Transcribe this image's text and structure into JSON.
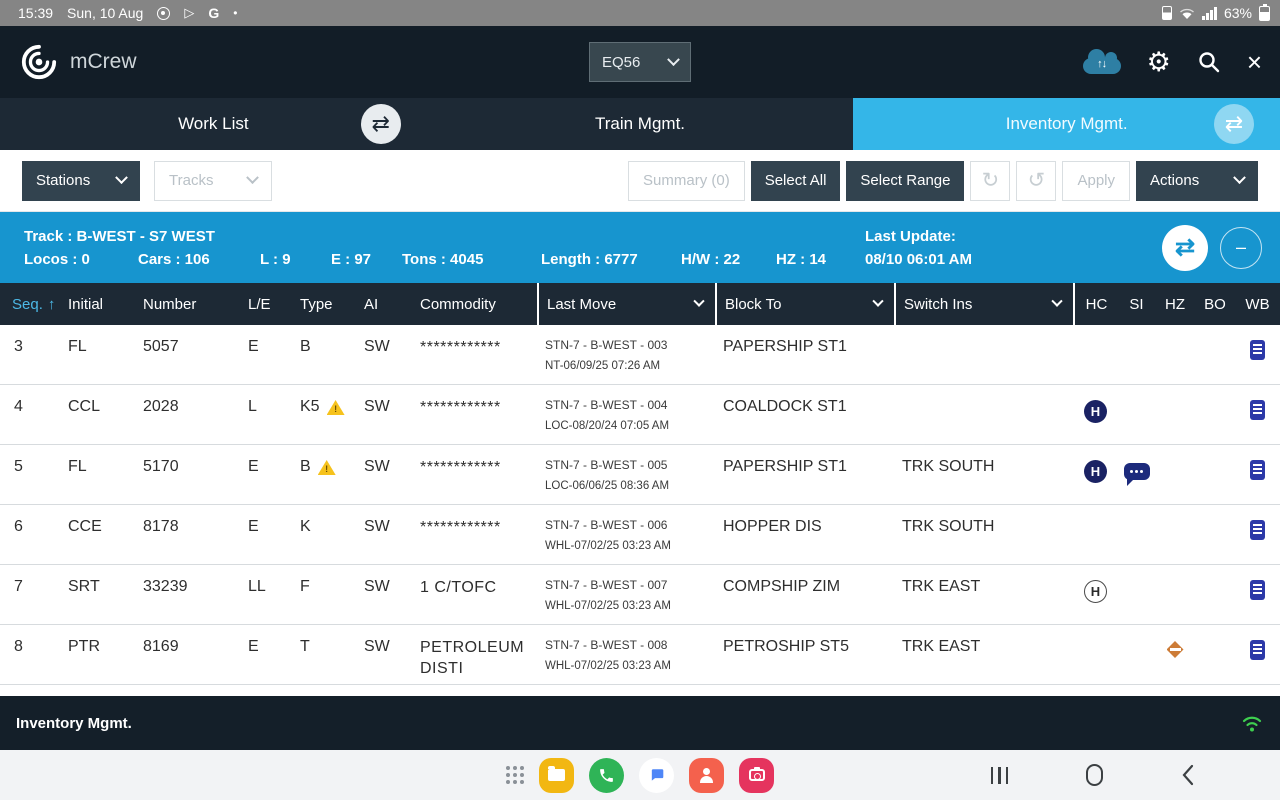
{
  "status_bar": {
    "time": "15:39",
    "date": "Sun, 10 Aug",
    "battery": "63%"
  },
  "app_header": {
    "title": "mCrew",
    "train_id": "EQ56"
  },
  "tabs": {
    "work_list": "Work List",
    "train_mgmt": "Train Mgmt.",
    "inventory_mgmt": "Inventory Mgmt."
  },
  "toolbar": {
    "stations": "Stations",
    "tracks": "Tracks",
    "summary": "Summary (0)",
    "select_all": "Select All",
    "select_range": "Select Range",
    "apply": "Apply",
    "actions": "Actions"
  },
  "track_summary": {
    "track_line": "Track : B-WEST - S7 WEST",
    "stats": {
      "locos": "Locos : 0",
      "cars": "Cars : 106",
      "loads": "L : 9",
      "empties": "E : 97",
      "tons": "Tons : 4045",
      "length": "Length : 6777",
      "hw": "H/W : 22",
      "hz": "HZ : 14"
    },
    "last_update_label": "Last Update:",
    "last_update_value": "08/10 06:01 AM"
  },
  "ui": {
    "sort_arrow": "↑",
    "h_badge": "H",
    "swap_glyph": "⇄",
    "sync_glyph": "↻",
    "undo_glyph": "↺"
  },
  "icons": {
    "header": [
      "cloud-sync-icon",
      "settings-gear-icon",
      "search-icon",
      "close-icon"
    ],
    "status_bar_left": [
      "recorder-icon",
      "play-store-icon",
      "google-icon"
    ],
    "status_bar_right": [
      "battery-saver-icon",
      "wifi-icon",
      "signal-strength-icon",
      "battery-icon"
    ],
    "footer": [
      "wifi-status-icon"
    ],
    "table_badges": {
      "hc": "hold-badge",
      "si": "comment-icon",
      "hz": "hazmat-diamond-icon",
      "wb": "waybill-document-icon"
    },
    "nav_bar": [
      "apps-grid-icon",
      "files-app-icon",
      "phone-app-icon",
      "messages-app-icon",
      "contacts-app-icon",
      "camera-app-icon",
      "recents-key",
      "home-key",
      "back-key"
    ]
  },
  "table": {
    "columns": [
      {
        "key": "seq",
        "label": "Seq.",
        "sorted": true,
        "interactable": true
      },
      {
        "key": "initial",
        "label": "Initial"
      },
      {
        "key": "number",
        "label": "Number"
      },
      {
        "key": "le",
        "label": "L/E"
      },
      {
        "key": "type",
        "label": "Type"
      },
      {
        "key": "ai",
        "label": "AI"
      },
      {
        "key": "commodity",
        "label": "Commodity"
      },
      {
        "key": "last_move",
        "label": "Last Move",
        "dropdown": true,
        "interactable": true
      },
      {
        "key": "block_to",
        "label": "Block To",
        "dropdown": true,
        "interactable": true
      },
      {
        "key": "switch_ins",
        "label": "Switch Ins",
        "dropdown": true,
        "interactable": true
      },
      {
        "key": "hc",
        "label": "HC"
      },
      {
        "key": "si",
        "label": "SI"
      },
      {
        "key": "hz",
        "label": "HZ"
      },
      {
        "key": "bo",
        "label": "BO"
      },
      {
        "key": "wb",
        "label": "WB"
      }
    ],
    "rows": [
      {
        "seq": "3",
        "initial": "FL",
        "number": "5057",
        "le": "E",
        "type": "B",
        "type_warning": false,
        "ai": "SW",
        "commodity": "************",
        "last_move_line1": "STN-7  - B-WEST   - 003",
        "last_move_line2": "NT-06/09/25 07:26 AM",
        "block_to": "PAPERSHIP ST1",
        "switch_ins": "",
        "hc": "",
        "si": false,
        "hz": false,
        "bo": "",
        "wb": true
      },
      {
        "seq": "4",
        "initial": "CCL",
        "number": "2028",
        "le": "L",
        "type": "K5",
        "type_warning": true,
        "ai": "SW",
        "commodity": "************",
        "last_move_line1": "STN-7  - B-WEST   - 004",
        "last_move_line2": "LOC-08/20/24 07:05 AM",
        "block_to": "COALDOCK ST1",
        "switch_ins": "",
        "hc": "filled",
        "si": false,
        "hz": false,
        "bo": "",
        "wb": true
      },
      {
        "seq": "5",
        "initial": "FL",
        "number": "5170",
        "le": "E",
        "type": "B",
        "type_warning": true,
        "ai": "SW",
        "commodity": "************",
        "last_move_line1": "STN-7  - B-WEST   - 005",
        "last_move_line2": "LOC-06/06/25 08:36 AM",
        "block_to": "PAPERSHIP ST1",
        "switch_ins": "TRK SOUTH",
        "hc": "filled",
        "si": true,
        "hz": false,
        "bo": "",
        "wb": true
      },
      {
        "seq": "6",
        "initial": "CCE",
        "number": "8178",
        "le": "E",
        "type": "K",
        "type_warning": false,
        "ai": "SW",
        "commodity": "************",
        "last_move_line1": "STN-7  - B-WEST   - 006",
        "last_move_line2": "WHL-07/02/25 03:23 AM",
        "block_to": "HOPPER DIS",
        "switch_ins": "TRK SOUTH",
        "hc": "",
        "si": false,
        "hz": false,
        "bo": "",
        "wb": true
      },
      {
        "seq": "7",
        "initial": "SRT",
        "number": "33239",
        "le": "LL",
        "type": "F",
        "type_warning": false,
        "ai": "SW",
        "commodity": "1 C/TOFC",
        "last_move_line1": "STN-7  - B-WEST   - 007",
        "last_move_line2": "WHL-07/02/25 03:23 AM",
        "block_to": "COMPSHIP ZIM",
        "switch_ins": "TRK EAST",
        "hc": "outlined",
        "si": false,
        "hz": false,
        "bo": "",
        "wb": true
      },
      {
        "seq": "8",
        "initial": "PTR",
        "number": "8169",
        "le": "E",
        "type": "T",
        "type_warning": false,
        "ai": "SW",
        "commodity": "PETROLEUM DISTI",
        "last_move_line1": "STN-7  - B-WEST   - 008",
        "last_move_line2": "WHL-07/02/25 03:23 AM",
        "block_to": "PETROSHIP ST5",
        "switch_ins": "TRK EAST",
        "hc": "",
        "si": false,
        "hz": true,
        "bo": "",
        "wb": true
      }
    ]
  },
  "footer": {
    "title": "Inventory Mgmt."
  }
}
